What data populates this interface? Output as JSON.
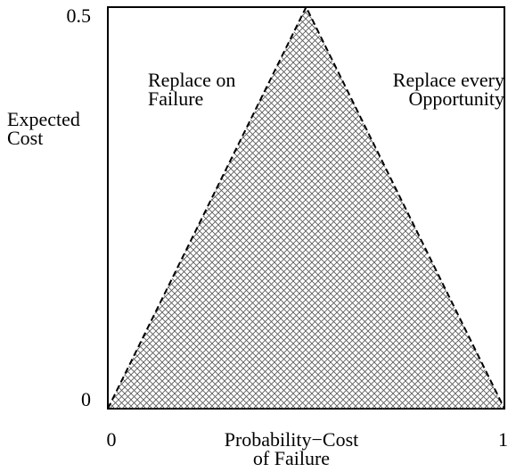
{
  "chart_data": {
    "type": "area",
    "x": [
      0,
      0.5,
      1
    ],
    "values": [
      0,
      0.5,
      0
    ],
    "xlim": [
      0,
      1
    ],
    "ylim": [
      0,
      0.5
    ],
    "xticks": [
      0,
      1
    ],
    "yticks": [
      0,
      0.5
    ],
    "ylabel": [
      "Expected",
      "Cost"
    ],
    "xlabel": [
      "Probability−Cost",
      "of Failure"
    ],
    "annotations": [
      {
        "lines": [
          "Replace on",
          "Failure"
        ]
      },
      {
        "lines": [
          "Replace every",
          "Opportunity"
        ]
      }
    ],
    "color": "#000000"
  }
}
